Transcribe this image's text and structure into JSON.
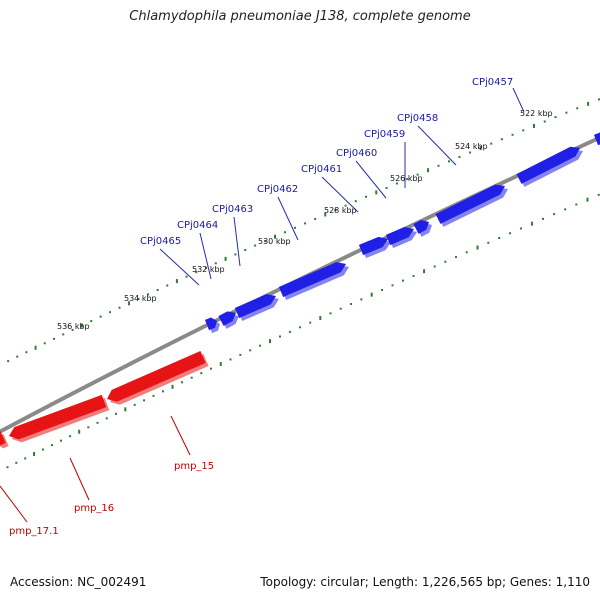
{
  "title": "Chlamydophila pneumoniae J138, complete genome",
  "footer": {
    "accession": "Accession: NC_002491",
    "topology": "Topology: circular; Length: 1,226,565 bp; Genes: 1,110"
  },
  "colors": {
    "forward_gene": "#1f1fe6",
    "reverse_gene": "#e61414",
    "backbone": "#8a8a8a",
    "ticks": "#2e7d32"
  },
  "scale_labels": [
    "522 kbp",
    "524 kbp",
    "526 kbp",
    "528 kbp",
    "530 kbp",
    "532 kbp",
    "534 kbp",
    "536 kbp"
  ],
  "forward_gene_labels": [
    "CPj0457",
    "CPj0458",
    "CPj0459",
    "CPj0460",
    "CPj0461",
    "CPj0462",
    "CPj0463",
    "CPj0464",
    "CPj0465"
  ],
  "reverse_gene_labels": [
    "pmp_15",
    "pmp_16",
    "pmp_17.1"
  ]
}
